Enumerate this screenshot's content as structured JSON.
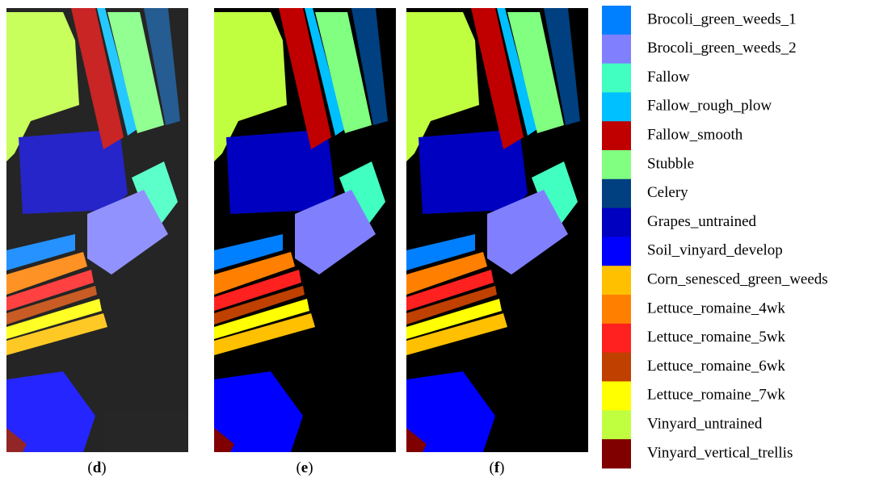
{
  "panels": [
    {
      "label": [
        "(",
        "d",
        ")"
      ]
    },
    {
      "label": [
        "(",
        "e",
        ")"
      ]
    },
    {
      "label": [
        "(",
        "f",
        ")"
      ]
    }
  ],
  "legend": [
    {
      "name": "Brocoli_green_weeds_1",
      "color": "#0080ff"
    },
    {
      "name": "Brocoli_green_weeds_2",
      "color": "#8080ff"
    },
    {
      "name": "Fallow",
      "color": "#40ffc0"
    },
    {
      "name": "Fallow_rough_plow",
      "color": "#00c0ff"
    },
    {
      "name": "Fallow_smooth",
      "color": "#c00000"
    },
    {
      "name": "Stubble",
      "color": "#80ff80"
    },
    {
      "name": "Celery",
      "color": "#004080"
    },
    {
      "name": "Grapes_untrained",
      "color": "#0000c0"
    },
    {
      "name": "Soil_vinyard_develop",
      "color": "#0000ff"
    },
    {
      "name": "Corn_senesced_green_weeds",
      "color": "#ffc000"
    },
    {
      "name": "Lettuce_romaine_4wk",
      "color": "#ff8000"
    },
    {
      "name": "Lettuce_romaine_5wk",
      "color": "#ff2020"
    },
    {
      "name": "Lettuce_romaine_6wk",
      "color": "#c04000"
    },
    {
      "name": "Lettuce_romaine_7wk",
      "color": "#ffff00"
    },
    {
      "name": "Vinyard_untrained",
      "color": "#c0ff40"
    },
    {
      "name": "Vinyard_vertical_trellis",
      "color": "#800000"
    }
  ]
}
